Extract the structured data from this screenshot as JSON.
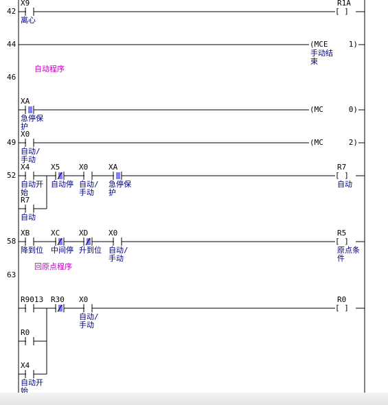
{
  "steps": [
    "42",
    "44",
    "46",
    "49",
    "52",
    "58",
    "63"
  ],
  "headings": [
    "自动程序",
    "回原点程序"
  ],
  "rungs": [
    {
      "contacts": [
        {
          "device": "X9",
          "comment": [
            "离心"
          ]
        }
      ],
      "output": {
        "device": "R1A",
        "coil": "[  ]",
        "comment": []
      }
    },
    {
      "contacts": [],
      "output": {
        "instruction": "(MCE",
        "operand": "1)",
        "comment": [
          "手动结",
          "束"
        ]
      }
    },
    {
      "contacts": [
        {
          "device": "XA",
          "comment": [
            "急停保",
            "护"
          ]
        }
      ],
      "output": {
        "instruction": "(MC",
        "operand": "0)",
        "comment": []
      }
    },
    {
      "contacts": [
        {
          "device": "X0",
          "comment": [
            "自动/",
            "手动"
          ]
        }
      ],
      "output": {
        "instruction": "(MC",
        "operand": "2)",
        "comment": []
      }
    },
    {
      "contacts": [
        {
          "device": "X4",
          "comment": [
            "自动开",
            "始"
          ]
        },
        {
          "device": "X5",
          "comment": [
            "自动停"
          ]
        },
        {
          "device": "X0",
          "comment": [
            "自动/",
            "手动"
          ]
        },
        {
          "device": "XA",
          "comment": [
            "急停保",
            "护"
          ]
        }
      ],
      "branches": [
        {
          "device": "R7",
          "comment": [
            "自动"
          ]
        }
      ],
      "output": {
        "device": "R7",
        "coil": "[  ]",
        "comment": [
          "自动"
        ]
      }
    },
    {
      "contacts": [
        {
          "device": "XB",
          "comment": [
            "降到位"
          ]
        },
        {
          "device": "XC",
          "comment": [
            "中间停"
          ]
        },
        {
          "device": "XD",
          "comment": [
            "升到位"
          ]
        },
        {
          "device": "X0",
          "comment": [
            "自动/",
            "手动"
          ]
        }
      ],
      "output": {
        "device": "R5",
        "coil": "[  ]",
        "comment": [
          "原点条",
          "件"
        ]
      }
    },
    {
      "contacts": [
        {
          "device": "R9013",
          "comment": []
        },
        {
          "device": "R30",
          "comment": []
        },
        {
          "device": "X0",
          "comment": [
            "自动/",
            "手动"
          ]
        }
      ],
      "branches": [
        {
          "device": "R0",
          "comment": []
        },
        {
          "device": "X4",
          "comment": [
            "自动开",
            "始"
          ]
        }
      ],
      "output": {
        "device": "R0",
        "coil": "[  ]",
        "comment": []
      }
    }
  ]
}
